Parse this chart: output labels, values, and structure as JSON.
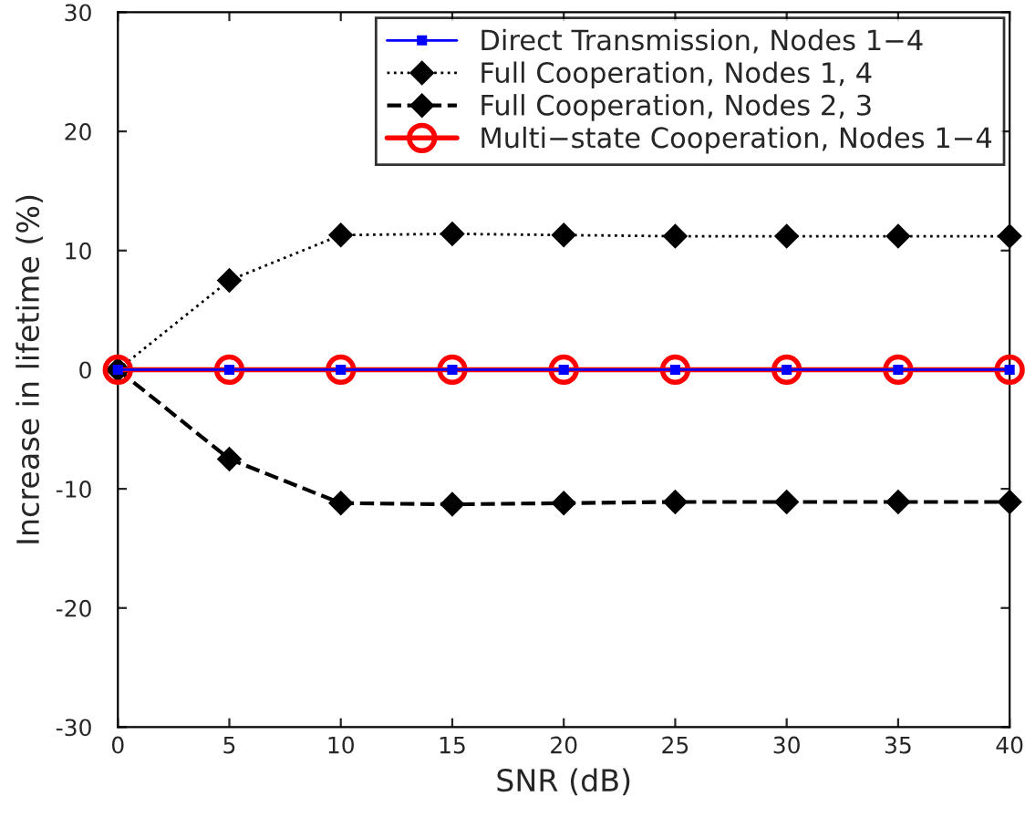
{
  "chart_data": {
    "type": "line",
    "xlabel": "SNR (dB)",
    "ylabel": "Increase in lifetime (%)",
    "x": [
      0,
      5,
      10,
      15,
      20,
      25,
      30,
      35,
      40
    ],
    "series": [
      {
        "name": "Direct Transmission, Nodes 1−4",
        "color": "#0000ff",
        "marker": "square",
        "line_style": "solid",
        "values": [
          0,
          0,
          0,
          0,
          0,
          0,
          0,
          0,
          0
        ]
      },
      {
        "name": "Full Cooperation, Nodes 1, 4",
        "color": "#000000",
        "marker": "diamond",
        "line_style": "dotted",
        "values": [
          0,
          7.5,
          11.3,
          11.4,
          11.3,
          11.2,
          11.2,
          11.2,
          11.2
        ]
      },
      {
        "name": "Full Cooperation, Nodes 2, 3",
        "color": "#000000",
        "marker": "diamond",
        "line_style": "dashed",
        "values": [
          0,
          -7.5,
          -11.2,
          -11.3,
          -11.2,
          -11.1,
          -11.1,
          -11.1,
          -11.1
        ]
      },
      {
        "name": "Multi−state Cooperation, Nodes 1−4",
        "color": "#ff0000",
        "marker": "circle",
        "line_style": "solid",
        "values": [
          0,
          0,
          0,
          0,
          0,
          0,
          0,
          0,
          0
        ]
      }
    ],
    "xlim": [
      0,
      40
    ],
    "xticks": [
      0,
      5,
      10,
      15,
      20,
      25,
      30,
      35,
      40
    ],
    "ylim": [
      -30,
      30
    ],
    "yticks": [
      -30,
      -20,
      -10,
      0,
      10,
      20,
      30
    ],
    "grid": false,
    "legend": "top right"
  }
}
